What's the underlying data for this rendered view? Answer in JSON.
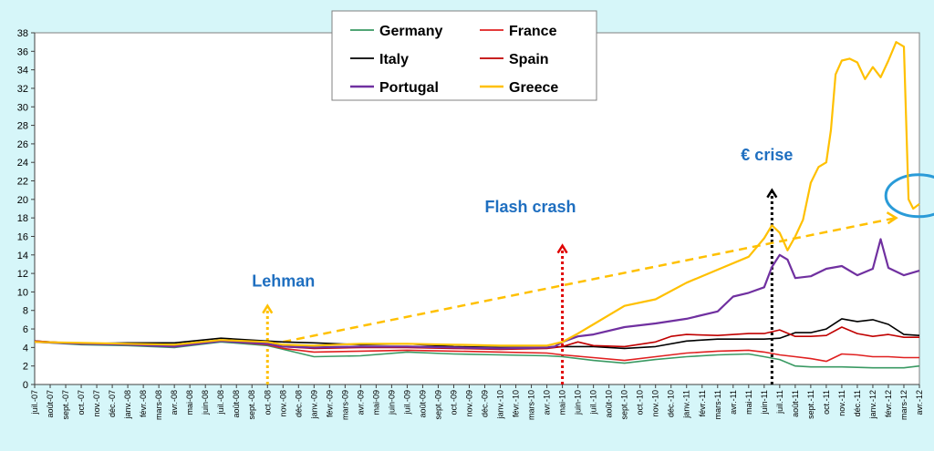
{
  "chart_data": {
    "type": "line",
    "title": "",
    "xlabel": "",
    "ylabel": "",
    "ylim": [
      0,
      38
    ],
    "y_ticks": [
      0,
      2,
      4,
      6,
      8,
      10,
      12,
      14,
      16,
      18,
      20,
      22,
      24,
      26,
      28,
      30,
      32,
      34,
      36,
      38
    ],
    "x_ticks": [
      "juil.-07",
      "août-07",
      "sept.-07",
      "oct.-07",
      "nov.-07",
      "déc.-07",
      "janv.-08",
      "févr.-08",
      "mars-08",
      "avr.-08",
      "mai-08",
      "juin-08",
      "juil.-08",
      "août-08",
      "sept.-08",
      "oct.-08",
      "nov.-08",
      "déc.-08",
      "janv.-09",
      "févr.-09",
      "mars-09",
      "avr.-09",
      "mai-09",
      "juin-09",
      "juil.-09",
      "août-09",
      "sept.-09",
      "oct.-09",
      "nov.-09",
      "déc.-09",
      "janv.-10",
      "févr.-10",
      "mars-10",
      "avr.-10",
      "mai-10",
      "juin-10",
      "juil.-10",
      "août-10",
      "sept.-10",
      "oct.-10",
      "nov.-10",
      "déc.-10",
      "janv.-11",
      "févr.-11",
      "mars-11",
      "avr.-11",
      "mai-11",
      "juin-11",
      "juil.-11",
      "août-11",
      "sept.-11",
      "oct.-11",
      "nov.-11",
      "déc.-11",
      "janv.-12",
      "févr.-12",
      "mars-12",
      "avr.-12"
    ],
    "x_unit": "months since juil.-07",
    "grid": true,
    "legend": "top-center",
    "series": [
      {
        "name": "Germany",
        "color": "#3a9a63",
        "x": [
          0,
          3,
          6,
          9,
          12,
          15,
          16,
          18,
          21,
          24,
          27,
          30,
          33,
          34,
          36,
          38,
          40,
          42,
          44,
          46,
          47,
          48,
          49,
          50,
          52,
          54,
          56,
          57
        ],
        "y": [
          4.6,
          4.3,
          4.2,
          4.0,
          4.6,
          4.2,
          3.8,
          3.0,
          3.1,
          3.5,
          3.3,
          3.2,
          3.1,
          3.0,
          2.6,
          2.3,
          2.7,
          3.0,
          3.2,
          3.3,
          3.0,
          2.7,
          2.0,
          1.9,
          1.9,
          1.8,
          1.8,
          2.0
        ]
      },
      {
        "name": "France",
        "color": "#e02020",
        "x": [
          0,
          3,
          6,
          9,
          12,
          15,
          16,
          18,
          21,
          24,
          27,
          30,
          33,
          34,
          36,
          38,
          40,
          42,
          44,
          46,
          47,
          48,
          49,
          50,
          51,
          52,
          53,
          54,
          55,
          56,
          57
        ],
        "y": [
          4.6,
          4.4,
          4.3,
          4.1,
          4.7,
          4.3,
          3.9,
          3.5,
          3.6,
          3.7,
          3.6,
          3.5,
          3.4,
          3.2,
          2.9,
          2.6,
          3.0,
          3.4,
          3.6,
          3.7,
          3.5,
          3.2,
          3.0,
          2.8,
          2.5,
          3.3,
          3.2,
          3.0,
          3.0,
          2.9,
          2.9
        ]
      },
      {
        "name": "Italy",
        "color": "#000000",
        "x": [
          0,
          3,
          6,
          9,
          12,
          15,
          16,
          18,
          21,
          24,
          27,
          30,
          33,
          34,
          36,
          38,
          40,
          42,
          44,
          46,
          47,
          48,
          49,
          50,
          51,
          52,
          53,
          54,
          55,
          56,
          57
        ],
        "y": [
          4.7,
          4.4,
          4.5,
          4.5,
          5.0,
          4.7,
          4.6,
          4.5,
          4.3,
          4.4,
          4.1,
          4.0,
          4.0,
          4.1,
          4.1,
          3.9,
          4.1,
          4.7,
          4.9,
          4.9,
          4.9,
          5.0,
          5.6,
          5.6,
          6.0,
          7.1,
          6.8,
          7.0,
          6.5,
          5.4,
          5.3
        ]
      },
      {
        "name": "Spain",
        "color": "#c00000",
        "x": [
          0,
          3,
          6,
          9,
          12,
          15,
          16,
          18,
          21,
          24,
          27,
          30,
          33,
          34,
          35,
          36,
          38,
          40,
          41,
          42,
          44,
          46,
          47,
          48,
          49,
          50,
          51,
          52,
          53,
          54,
          55,
          56,
          57
        ],
        "y": [
          4.7,
          4.4,
          4.4,
          4.2,
          4.8,
          4.4,
          4.1,
          3.9,
          4.0,
          4.0,
          3.9,
          3.8,
          3.9,
          4.1,
          4.6,
          4.2,
          4.1,
          4.6,
          5.2,
          5.4,
          5.3,
          5.5,
          5.5,
          5.9,
          5.2,
          5.2,
          5.3,
          6.2,
          5.5,
          5.2,
          5.4,
          5.1,
          5.1
        ]
      },
      {
        "name": "Portugal",
        "color": "#7030a0",
        "x": [
          0,
          3,
          6,
          9,
          12,
          15,
          16,
          18,
          21,
          24,
          27,
          30,
          33,
          33.5,
          34,
          35,
          36,
          38,
          40,
          42,
          44,
          45,
          46,
          47,
          47.5,
          48,
          48.5,
          49,
          50,
          51,
          52,
          53,
          54,
          54.5,
          55,
          56,
          57
        ],
        "y": [
          4.6,
          4.4,
          4.3,
          4.1,
          4.7,
          4.4,
          4.1,
          4.0,
          4.1,
          4.1,
          4.0,
          3.9,
          4.0,
          4.1,
          4.6,
          5.2,
          5.4,
          6.2,
          6.6,
          7.1,
          7.9,
          9.5,
          9.9,
          10.5,
          12.7,
          14.0,
          13.5,
          11.5,
          11.7,
          12.5,
          12.8,
          11.8,
          12.5,
          15.7,
          12.6,
          11.8,
          12.3
        ]
      },
      {
        "name": "Greece",
        "color": "#ffc000",
        "x": [
          0,
          3,
          6,
          9,
          12,
          15,
          16,
          18,
          21,
          24,
          27,
          30,
          33,
          34,
          35,
          36,
          38,
          40,
          42,
          44,
          46,
          47,
          47.5,
          48,
          48.5,
          49,
          49.5,
          50,
          50.5,
          51,
          51.3,
          51.6,
          52,
          52.5,
          53,
          53.5,
          54,
          54.5,
          55,
          55.5,
          56,
          56.3,
          56.6,
          57
        ],
        "y": [
          4.6,
          4.5,
          4.4,
          4.3,
          4.8,
          4.6,
          4.3,
          4.2,
          4.4,
          4.4,
          4.3,
          4.2,
          4.2,
          4.6,
          5.5,
          6.5,
          8.5,
          9.2,
          11.0,
          12.4,
          13.8,
          15.8,
          17.2,
          16.4,
          14.5,
          16.0,
          17.8,
          21.8,
          23.5,
          24.0,
          27.5,
          33.5,
          35.0,
          35.2,
          34.8,
          33.0,
          34.3,
          33.2,
          35.0,
          37.0,
          36.5,
          20.0,
          19.0,
          19.5
        ]
      }
    ],
    "annotations": [
      {
        "text": "Lehman",
        "color": "#1f6fc0",
        "x": 15,
        "y": 9
      },
      {
        "text": "Flash crash",
        "color": "#1f6fc0",
        "x": 34,
        "y": 16
      },
      {
        "text": "€ crise",
        "color": "#1f6fc0",
        "x": 47.5,
        "y": 22
      }
    ]
  }
}
